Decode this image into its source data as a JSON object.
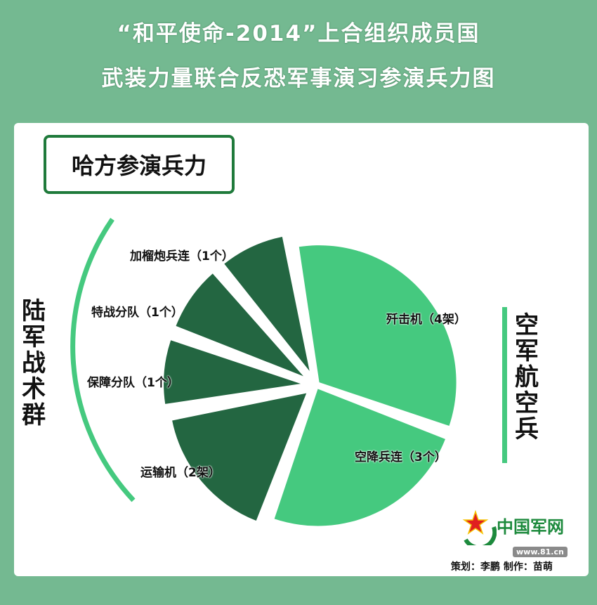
{
  "header": {
    "line1": "“和平使命-2014”上合组织成员国",
    "line2": "武装力量联合反恐军事演习参演兵力图"
  },
  "box_title": "哈方参演兵力",
  "groups": {
    "army": "陆军战术群",
    "air": "空军航空兵"
  },
  "colors": {
    "background": "#74b991",
    "army": "#236641",
    "air": "#45c97f",
    "frame": "#1f7a3b"
  },
  "chart_data": {
    "type": "pie",
    "slices": [
      {
        "label": "歼击机（4架）",
        "name": "歼击机",
        "value": 4,
        "unit": "架",
        "group": "空军航空兵"
      },
      {
        "label": "空降兵连（3个）",
        "name": "空降兵连",
        "value": 3,
        "unit": "个",
        "group": "空军航空兵"
      },
      {
        "label": "运输机（2架）",
        "name": "运输机",
        "value": 2,
        "unit": "架",
        "group": "陆军战术群"
      },
      {
        "label": "保障分队（1个）",
        "name": "保障分队",
        "value": 1,
        "unit": "个",
        "group": "陆军战术群"
      },
      {
        "label": "特战分队（1个）",
        "name": "特战分队",
        "value": 1,
        "unit": "个",
        "group": "陆军战术群"
      },
      {
        "label": "加榴炮兵连（1个）",
        "name": "加榴炮兵连",
        "value": 1,
        "unit": "个",
        "group": "陆军战术群"
      }
    ]
  },
  "footer": {
    "logo": "中国军网",
    "url": "www.81.cn",
    "credit": "策划：李鹏 制作：苗萌"
  }
}
